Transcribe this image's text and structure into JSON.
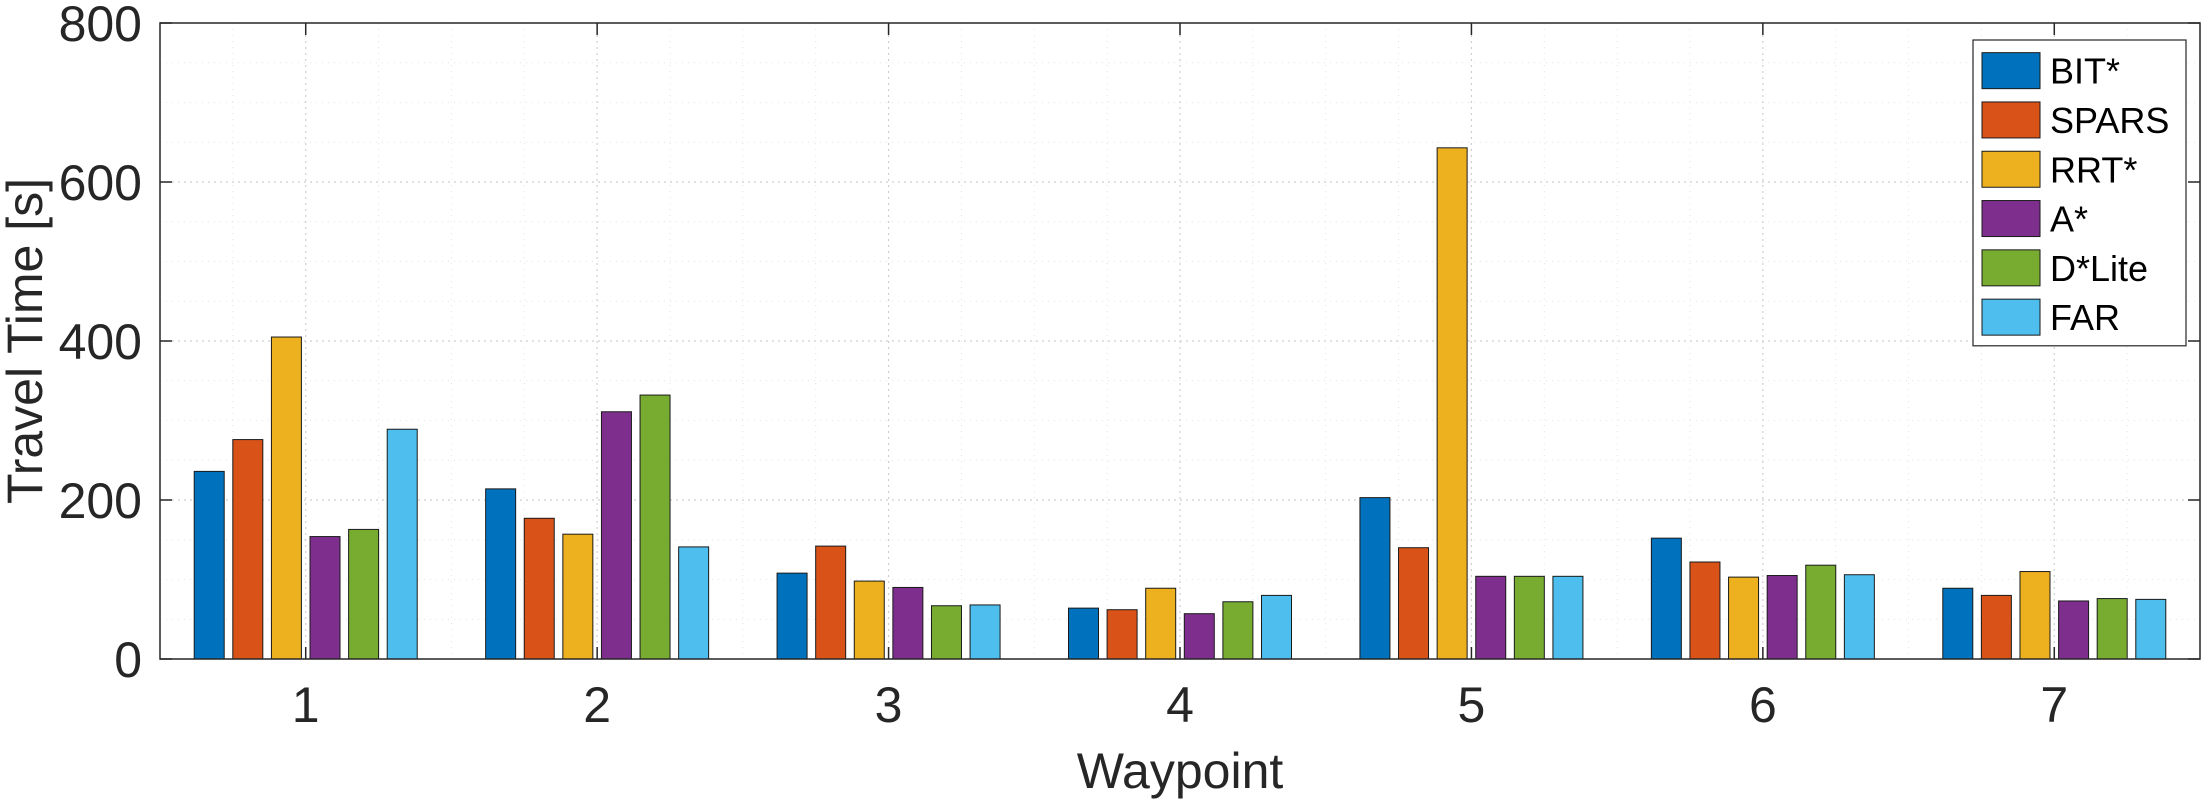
{
  "chart_data": {
    "type": "bar",
    "title": "",
    "xlabel": "Waypoint",
    "ylabel": "Travel Time [s]",
    "categories": [
      "1",
      "2",
      "3",
      "4",
      "5",
      "6",
      "7"
    ],
    "ylim": [
      0,
      800
    ],
    "yticks": [
      "0",
      "200",
      "400",
      "600",
      "800"
    ],
    "grid": true,
    "legend_position": "top-right",
    "series": [
      {
        "name": "BIT*",
        "color": "#0072BD",
        "values": [
          236,
          214,
          108,
          64,
          203,
          152,
          89
        ]
      },
      {
        "name": "SPARS",
        "color": "#D95319",
        "values": [
          276,
          177,
          142,
          62,
          140,
          122,
          80
        ]
      },
      {
        "name": "RRT*",
        "color": "#EDB120",
        "values": [
          405,
          157,
          98,
          89,
          643,
          103,
          110
        ]
      },
      {
        "name": "A*",
        "color": "#7E2F8E",
        "values": [
          154,
          311,
          90,
          57,
          104,
          105,
          73
        ]
      },
      {
        "name": "D*Lite",
        "color": "#77AC30",
        "values": [
          163,
          332,
          67,
          72,
          104,
          118,
          76
        ]
      },
      {
        "name": "FAR",
        "color": "#4DBEEE",
        "values": [
          289,
          141,
          68,
          80,
          104,
          106,
          75
        ]
      }
    ]
  }
}
